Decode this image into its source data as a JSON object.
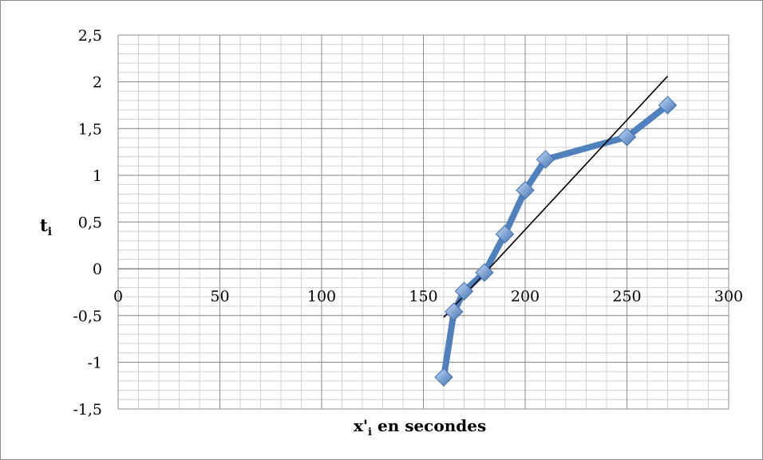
{
  "chart_data": {
    "type": "line",
    "title": "",
    "xlabel": "x'i en secondes",
    "xlabel_parts": {
      "base": "x'",
      "sub": "i",
      "rest": " en secondes"
    },
    "ylabel": "ti",
    "ylabel_parts": {
      "base": "t",
      "sub": "i"
    },
    "xlim": [
      0,
      300
    ],
    "ylim": [
      -1.5,
      2.5
    ],
    "x_ticks": [
      0,
      50,
      100,
      150,
      200,
      250,
      300
    ],
    "x_tick_labels": [
      "0",
      "50",
      "100",
      "150",
      "200",
      "250",
      "300"
    ],
    "y_ticks": [
      -1.5,
      -1,
      -0.5,
      0,
      0.5,
      1,
      1.5,
      2,
      2.5
    ],
    "y_tick_labels": [
      "-1,5",
      "-1",
      "-0,5",
      "0",
      "0,5",
      "1",
      "1,5",
      "2",
      "2,5"
    ],
    "grid": true,
    "minor_grid": {
      "x_step": 10,
      "y_step": 0.1
    },
    "legend": "none",
    "series": [
      {
        "type": "line",
        "marker": "diamond",
        "x": [
          160,
          165,
          170,
          180,
          190,
          200,
          210,
          250,
          270
        ],
        "y": [
          -1.16,
          -0.46,
          -0.24,
          -0.04,
          0.37,
          0.84,
          1.17,
          1.41,
          1.75
        ]
      }
    ],
    "trendline": {
      "type": "linear",
      "x": [
        160,
        270
      ],
      "y": [
        -0.52,
        2.06
      ]
    },
    "colors": {
      "series": "#4f81bd",
      "marker_light": "#a7c5ee",
      "marker_dark": "#3f6fb0",
      "trendline": "#000000",
      "major_grid": "#8c8c8c",
      "minor_grid": "#d0d0d0"
    }
  }
}
